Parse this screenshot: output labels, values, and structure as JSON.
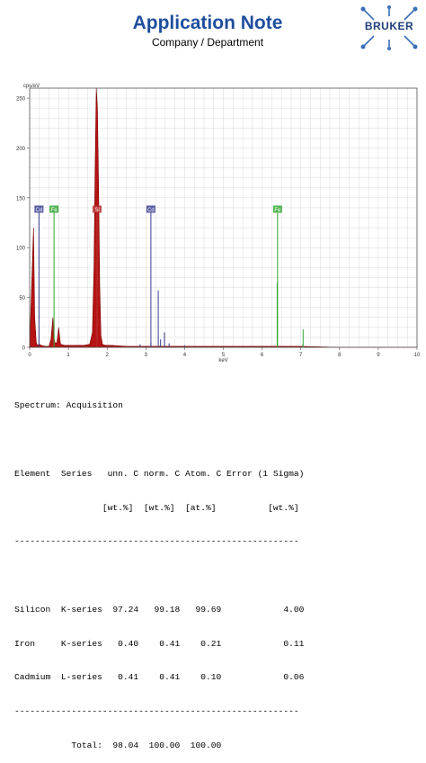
{
  "header": {
    "title": "Application Note",
    "subtitle": "Company / Department",
    "logo_text": "BRUKER"
  },
  "chart_data": {
    "type": "line",
    "ylabel": "cps/eV",
    "xlabel": "keV",
    "xlim": [
      0,
      10
    ],
    "ylim": [
      0,
      260
    ],
    "x_ticks": [
      0,
      1,
      2,
      3,
      4,
      5,
      6,
      7,
      8,
      9,
      10
    ],
    "y_ticks": [
      0,
      50,
      100,
      150,
      200,
      250
    ],
    "grid": true,
    "spectrum": [
      [
        0.0,
        0
      ],
      [
        0.1,
        120
      ],
      [
        0.13,
        30
      ],
      [
        0.17,
        5
      ],
      [
        0.2,
        2
      ],
      [
        0.25,
        3
      ],
      [
        0.3,
        2
      ],
      [
        0.4,
        1
      ],
      [
        0.5,
        1
      ],
      [
        0.55,
        8
      ],
      [
        0.6,
        30
      ],
      [
        0.62,
        12
      ],
      [
        0.65,
        5
      ],
      [
        0.7,
        4
      ],
      [
        0.72,
        10
      ],
      [
        0.75,
        20
      ],
      [
        0.78,
        8
      ],
      [
        0.8,
        3
      ],
      [
        0.9,
        2
      ],
      [
        1.0,
        2
      ],
      [
        1.2,
        2
      ],
      [
        1.4,
        2
      ],
      [
        1.55,
        3
      ],
      [
        1.62,
        15
      ],
      [
        1.66,
        80
      ],
      [
        1.69,
        180
      ],
      [
        1.72,
        260
      ],
      [
        1.75,
        240
      ],
      [
        1.78,
        160
      ],
      [
        1.81,
        60
      ],
      [
        1.84,
        12
      ],
      [
        1.88,
        3
      ],
      [
        1.95,
        2
      ],
      [
        2.1,
        2
      ],
      [
        2.5,
        1
      ],
      [
        3.0,
        1
      ],
      [
        3.5,
        1
      ],
      [
        4.0,
        1
      ],
      [
        5.0,
        1
      ],
      [
        6.0,
        1
      ],
      [
        6.4,
        1
      ],
      [
        7.0,
        1
      ],
      [
        8.0,
        0
      ],
      [
        9.0,
        0
      ],
      [
        10.0,
        0
      ]
    ],
    "minor_lines": [
      {
        "x": 3.13,
        "y": 5
      },
      {
        "x": 3.32,
        "y": 57
      },
      {
        "x": 3.48,
        "y": 15
      },
      {
        "x": 3.6,
        "y": 4
      },
      {
        "x": 2.85,
        "y": 3
      },
      {
        "x": 3.38,
        "y": 8
      },
      {
        "x": 4.0,
        "y": 2
      },
      {
        "x": 7.06,
        "y": 18
      },
      {
        "x": 7.05,
        "y": 3
      },
      {
        "x": 6.39,
        "y": 65
      }
    ],
    "markers": [
      {
        "label": "Cd",
        "x": 0.24,
        "top": 135,
        "color": "#3a3f8f"
      },
      {
        "label": "Fe",
        "x": 0.63,
        "top": 135,
        "color": "#35a835"
      },
      {
        "label": "Si",
        "x": 1.74,
        "top": 135,
        "color": "#b83030"
      },
      {
        "label": "Cd",
        "x": 3.13,
        "top": 135,
        "color": "#3a3f8f"
      },
      {
        "label": "Fe",
        "x": 6.4,
        "top": 135,
        "color": "#35a835"
      }
    ],
    "colors": {
      "fill": "#b51414",
      "edge": "#7a0000",
      "cd": "#3a3f8f",
      "fe": "#35a835",
      "grid": "#d9d9d9"
    }
  },
  "results": {
    "spectrum_line": "Spectrum: Acquisition",
    "header1": "Element  Series   unn. C norm. C Atom. C Error (1 Sigma)",
    "header2": "                 [wt.%]  [wt.%]  [at.%]          [wt.%]",
    "divider": "-------------------------------------------------------",
    "rows": [
      "Silicon  K-series  97.24   99.18   99.69            4.00",
      "Iron     K-series   0.40    0.41    0.21            0.11",
      "Cadmium  L-series   0.41    0.41    0.10            0.06"
    ],
    "divider2": "-------------------------------------------------------",
    "total": "           Total:  98.04  100.00  100.00"
  }
}
